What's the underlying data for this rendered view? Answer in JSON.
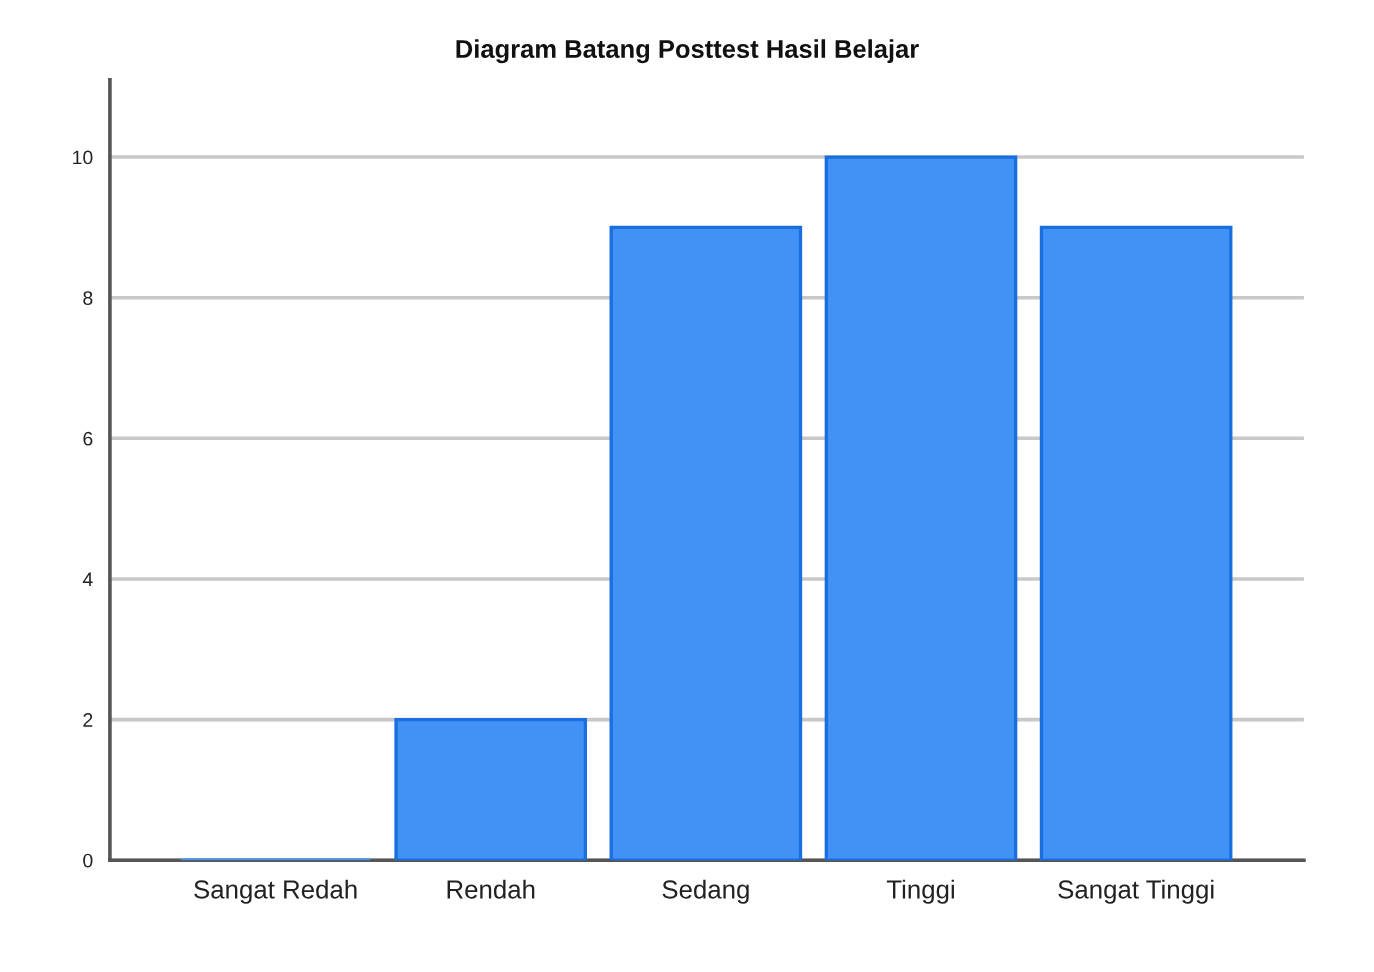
{
  "chart_data": {
    "type": "bar",
    "title": "Diagram Batang Posttest Hasil Belajar",
    "categories": [
      "Sangat Redah",
      "Rendah",
      "Sedang",
      "Tinggi",
      "Sangat Tinggi"
    ],
    "values": [
      0,
      2,
      9,
      10,
      9
    ],
    "color": "#4292f5",
    "ylim": [
      0,
      11.1
    ],
    "yticks": [
      0,
      2,
      4,
      6,
      8,
      10
    ],
    "grid": "y",
    "legend": false
  }
}
